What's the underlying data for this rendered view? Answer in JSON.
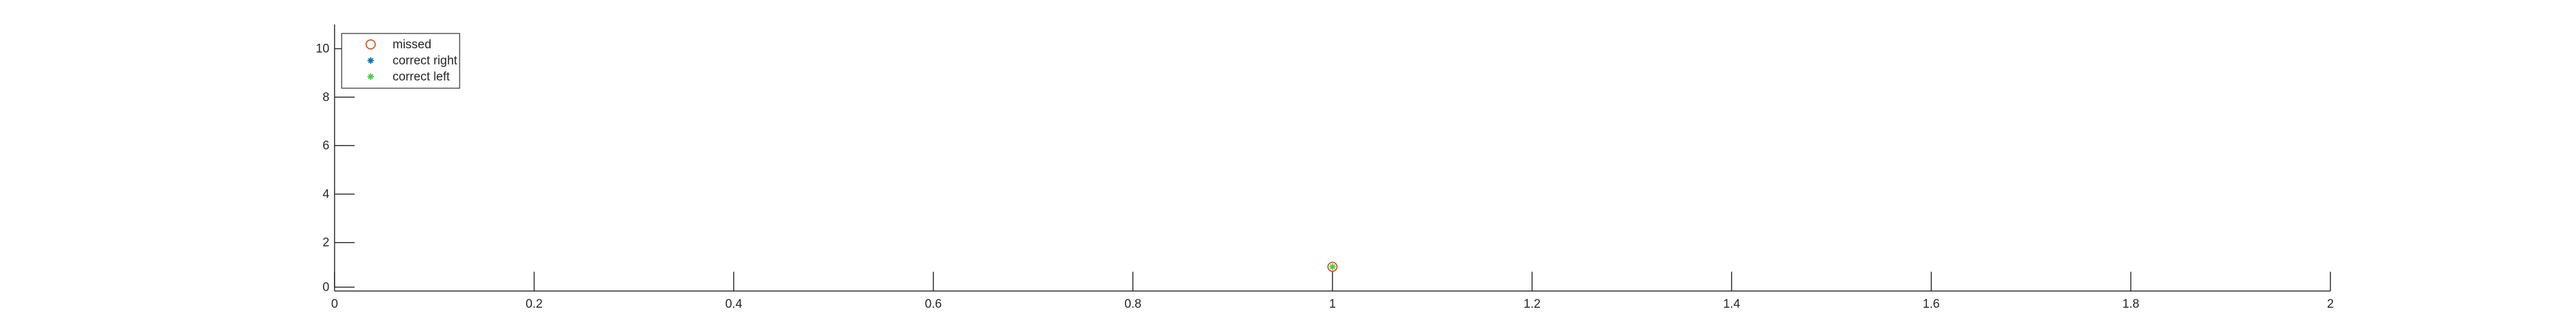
{
  "chart_data": {
    "type": "scatter",
    "title": "",
    "xlabel": "",
    "ylabel": "",
    "xlim": [
      0,
      2
    ],
    "ylim": [
      0,
      11
    ],
    "x_ticks": [
      0,
      0.2,
      0.4,
      0.6,
      0.8,
      1,
      1.2,
      1.4,
      1.6,
      1.8,
      2
    ],
    "x_tick_labels": [
      "0",
      "0.2",
      "0.4",
      "0.6",
      "0.8",
      "1",
      "1.2",
      "1.4",
      "1.6",
      "1.8",
      "2"
    ],
    "y_ticks": [
      0,
      2,
      4,
      6,
      8,
      10
    ],
    "y_tick_labels": [
      "0",
      "2",
      "4",
      "6",
      "8",
      "10"
    ],
    "grid": false,
    "legend_position": "top-left",
    "series": [
      {
        "name": "missed",
        "marker": "open-circle",
        "color": "#d95319",
        "points": [
          {
            "x": 1,
            "y": 1
          }
        ]
      },
      {
        "name": "correct right",
        "marker": "asterisk",
        "color": "#0072bd",
        "points": []
      },
      {
        "name": "correct left",
        "marker": "asterisk",
        "color": "#3fcf3f",
        "points": [
          {
            "x": 1,
            "y": 1
          }
        ]
      }
    ]
  }
}
